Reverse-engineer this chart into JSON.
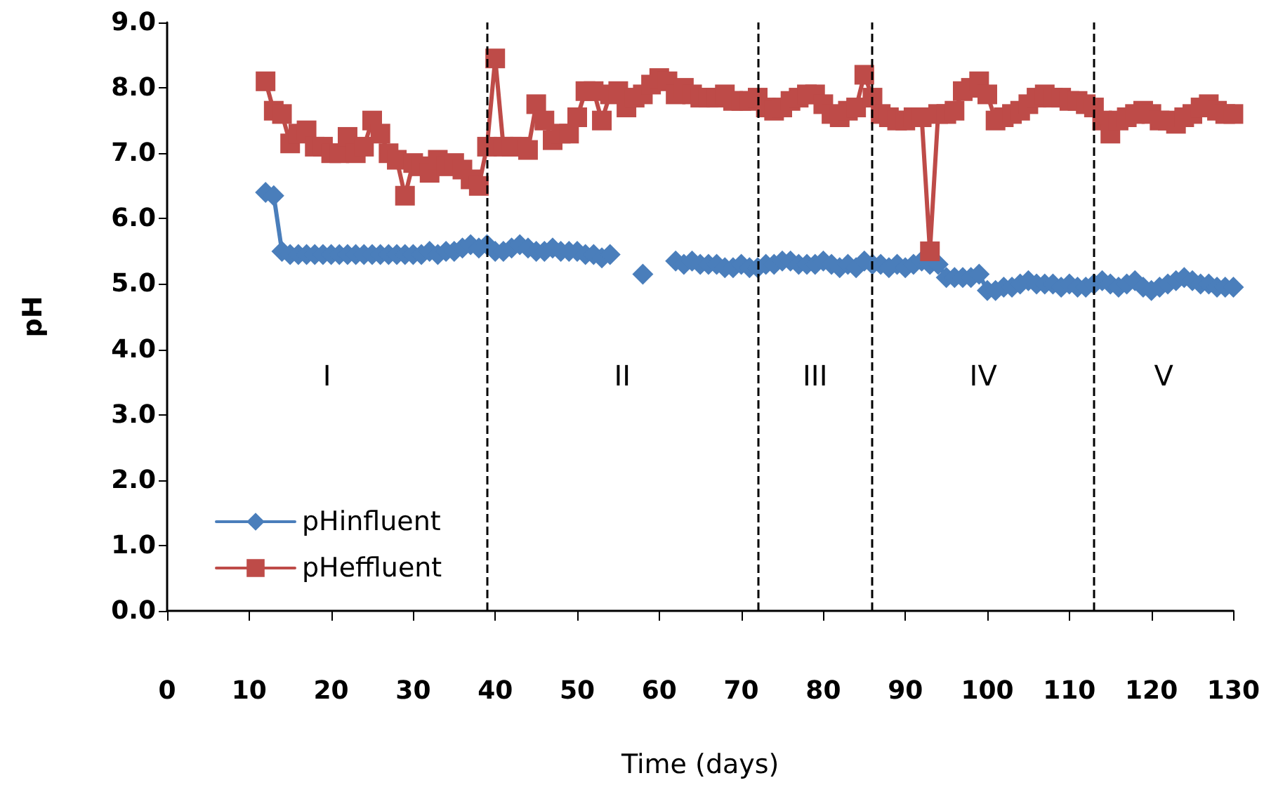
{
  "chart_data": {
    "type": "line",
    "xlabel": "Time (days)",
    "ylabel": "pH",
    "xlim": [
      0,
      130
    ],
    "xticks": [
      0,
      10,
      20,
      30,
      40,
      50,
      60,
      70,
      80,
      90,
      100,
      110,
      120,
      130
    ],
    "ylim": [
      0,
      9
    ],
    "yticks": [
      {
        "value": 0,
        "label": "0.0"
      },
      {
        "value": 1,
        "label": "1.0"
      },
      {
        "value": 2,
        "label": "2.0"
      },
      {
        "value": 3,
        "label": "3.0"
      },
      {
        "value": 4,
        "label": "4.0"
      },
      {
        "value": 5,
        "label": "5.0"
      },
      {
        "value": 6,
        "label": "6.0"
      },
      {
        "value": 7,
        "label": "7.0"
      },
      {
        "value": 8,
        "label": "8.0"
      },
      {
        "value": 9,
        "label": "9.0"
      }
    ],
    "x": [
      12,
      13,
      14,
      15,
      16,
      17,
      18,
      19,
      20,
      21,
      22,
      23,
      24,
      25,
      26,
      27,
      28,
      29,
      30,
      31,
      32,
      33,
      34,
      35,
      36,
      37,
      38,
      39,
      40,
      41,
      42,
      43,
      44,
      45,
      46,
      47,
      48,
      49,
      50,
      51,
      52,
      53,
      54,
      55,
      56,
      57,
      58,
      59,
      60,
      61,
      62,
      63,
      64,
      65,
      66,
      67,
      68,
      69,
      70,
      71,
      72,
      73,
      74,
      75,
      76,
      77,
      78,
      79,
      80,
      81,
      82,
      83,
      84,
      85,
      86,
      87,
      88,
      89,
      90,
      91,
      92,
      93,
      94,
      95,
      96,
      97,
      98,
      99,
      100,
      101,
      102,
      103,
      104,
      105,
      106,
      107,
      108,
      109,
      110,
      111,
      112,
      113,
      114,
      115,
      116,
      117,
      118,
      119,
      120,
      121,
      122,
      123,
      124,
      125,
      126,
      127,
      128,
      129,
      130
    ],
    "series": [
      {
        "name": "pHinfluent",
        "color": "#4a7ebb",
        "marker": "diamond",
        "values": [
          6.4,
          6.35,
          5.5,
          5.45,
          5.45,
          5.45,
          5.45,
          5.45,
          5.45,
          5.45,
          5.45,
          5.45,
          5.45,
          5.45,
          5.45,
          5.45,
          5.45,
          5.45,
          5.45,
          5.45,
          5.5,
          5.45,
          5.5,
          5.5,
          5.55,
          5.6,
          5.55,
          5.6,
          5.5,
          5.5,
          5.55,
          5.6,
          5.55,
          5.5,
          5.5,
          5.55,
          5.5,
          5.5,
          5.5,
          5.45,
          5.45,
          5.4,
          5.45,
          null,
          null,
          null,
          5.15,
          null,
          null,
          null,
          5.35,
          5.3,
          5.35,
          5.3,
          5.3,
          5.3,
          5.25,
          5.25,
          5.3,
          5.25,
          5.25,
          5.3,
          5.3,
          5.35,
          5.35,
          5.3,
          5.3,
          5.3,
          5.35,
          5.3,
          5.25,
          5.3,
          5.25,
          5.35,
          5.3,
          5.3,
          5.25,
          5.3,
          5.25,
          5.3,
          5.35,
          5.3,
          5.3,
          5.1,
          5.1,
          5.1,
          5.1,
          5.15,
          4.9,
          4.9,
          4.95,
          4.95,
          5.0,
          5.05,
          5.0,
          5.0,
          5.0,
          4.95,
          5.0,
          4.95,
          4.95,
          5.0,
          5.05,
          5.0,
          4.95,
          5.0,
          5.05,
          4.95,
          4.9,
          4.95,
          5.0,
          5.05,
          5.1,
          5.05,
          5.0,
          5.0,
          4.95,
          4.95,
          4.95
        ]
      },
      {
        "name": "pHeffluent",
        "color": "#be4b48",
        "marker": "square",
        "values": [
          8.1,
          7.65,
          7.6,
          7.15,
          7.3,
          7.35,
          7.1,
          7.1,
          7.0,
          7.0,
          7.25,
          7.0,
          7.1,
          7.5,
          7.3,
          7.0,
          6.9,
          6.35,
          6.85,
          6.8,
          6.7,
          6.9,
          6.8,
          6.85,
          6.75,
          6.6,
          6.5,
          7.1,
          8.45,
          7.1,
          7.1,
          7.1,
          7.05,
          7.75,
          7.5,
          7.2,
          7.3,
          7.3,
          7.55,
          7.95,
          7.95,
          7.5,
          7.9,
          7.95,
          7.7,
          7.85,
          7.9,
          8.05,
          8.15,
          8.1,
          7.9,
          8.0,
          7.9,
          7.85,
          7.85,
          7.85,
          7.9,
          7.8,
          7.8,
          7.8,
          7.85,
          7.7,
          7.65,
          7.7,
          7.8,
          7.85,
          7.9,
          7.9,
          7.75,
          7.6,
          7.55,
          7.65,
          7.7,
          8.2,
          7.85,
          7.6,
          7.55,
          7.5,
          7.5,
          7.55,
          7.55,
          5.5,
          7.6,
          7.6,
          7.65,
          7.95,
          8.0,
          8.1,
          7.9,
          7.5,
          7.55,
          7.6,
          7.65,
          7.75,
          7.85,
          7.9,
          7.85,
          7.85,
          7.8,
          7.8,
          7.75,
          7.7,
          7.5,
          7.3,
          7.5,
          7.55,
          7.6,
          7.65,
          7.6,
          7.5,
          7.5,
          7.45,
          7.55,
          7.6,
          7.7,
          7.75,
          7.65,
          7.6,
          7.6
        ]
      }
    ],
    "ref_lines": [
      {
        "axis": "x",
        "value": 39,
        "color": "#000000",
        "line_style": "dashed"
      },
      {
        "axis": "x",
        "value": 72,
        "color": "#000000",
        "line_style": "dashed"
      },
      {
        "axis": "x",
        "value": 86,
        "color": "#000000",
        "line_style": "dashed"
      },
      {
        "axis": "x",
        "value": 113,
        "color": "#000000",
        "line_style": "dashed"
      }
    ],
    "annotations": [
      "I",
      "II",
      "III",
      "IV",
      "V"
    ],
    "legend": "bottom left",
    "grid": false
  }
}
